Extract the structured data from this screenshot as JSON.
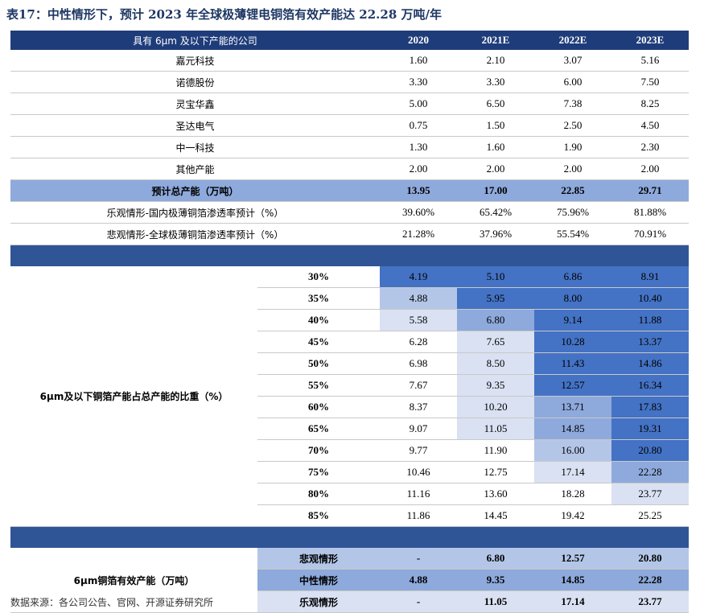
{
  "title": "表17：中性情形下，预计 2023 年全球极薄锂电铜箔有效产能达 22.28 万吨/年",
  "header": {
    "company": "具有 6μm 及以下产能的公司",
    "years": [
      "2020",
      "2021E",
      "2022E",
      "2023E"
    ]
  },
  "companies": [
    {
      "name": "嘉元科技",
      "values": [
        "1.60",
        "2.10",
        "3.07",
        "5.16"
      ]
    },
    {
      "name": "诺德股份",
      "values": [
        "3.30",
        "3.30",
        "6.00",
        "7.50"
      ]
    },
    {
      "name": "灵宝华鑫",
      "values": [
        "5.00",
        "6.50",
        "7.38",
        "8.25"
      ]
    },
    {
      "name": "圣达电气",
      "values": [
        "0.75",
        "1.50",
        "2.50",
        "4.50"
      ]
    },
    {
      "name": "中一科技",
      "values": [
        "1.30",
        "1.60",
        "1.90",
        "2.30"
      ]
    },
    {
      "name": "其他产能",
      "values": [
        "2.00",
        "2.00",
        "2.00",
        "2.00"
      ]
    }
  ],
  "total": {
    "name": "预计总产能（万吨）",
    "values": [
      "13.95",
      "17.00",
      "22.85",
      "29.71"
    ]
  },
  "penetration": [
    {
      "name": "乐观情形-国内极薄铜箔渗透率预计（%）",
      "values": [
        "39.60%",
        "65.42%",
        "75.96%",
        "81.88%"
      ]
    },
    {
      "name": "悲观情形-全球极薄铜箔渗透率预计（%）",
      "values": [
        "21.28%",
        "37.96%",
        "55.54%",
        "70.91%"
      ]
    }
  ],
  "ratio_label": "6μm及以下铜箔产能占总产能的比重（%）",
  "ratio_rows": [
    {
      "pct": "30%",
      "values": [
        "4.19",
        "5.10",
        "6.86",
        "8.91"
      ]
    },
    {
      "pct": "35%",
      "values": [
        "4.88",
        "5.95",
        "8.00",
        "10.40"
      ]
    },
    {
      "pct": "40%",
      "values": [
        "5.58",
        "6.80",
        "9.14",
        "11.88"
      ]
    },
    {
      "pct": "45%",
      "values": [
        "6.28",
        "7.65",
        "10.28",
        "13.37"
      ]
    },
    {
      "pct": "50%",
      "values": [
        "6.98",
        "8.50",
        "11.43",
        "14.86"
      ]
    },
    {
      "pct": "55%",
      "values": [
        "7.67",
        "9.35",
        "12.57",
        "16.34"
      ]
    },
    {
      "pct": "60%",
      "values": [
        "8.37",
        "10.20",
        "13.71",
        "17.83"
      ]
    },
    {
      "pct": "65%",
      "values": [
        "9.07",
        "11.05",
        "14.85",
        "19.31"
      ]
    },
    {
      "pct": "70%",
      "values": [
        "9.77",
        "11.90",
        "16.00",
        "20.80"
      ]
    },
    {
      "pct": "75%",
      "values": [
        "10.46",
        "12.75",
        "17.14",
        "22.28"
      ]
    },
    {
      "pct": "80%",
      "values": [
        "11.16",
        "13.60",
        "18.28",
        "23.77"
      ]
    },
    {
      "pct": "85%",
      "values": [
        "11.86",
        "14.45",
        "19.42",
        "25.25"
      ]
    }
  ],
  "ratio_shading": [
    [
      "c1",
      "c1",
      "c1",
      "c1"
    ],
    [
      "c3",
      "c1",
      "c1",
      "c1"
    ],
    [
      "c4",
      "c2",
      "c1",
      "c1"
    ],
    [
      "c0",
      "c4",
      "c1",
      "c1"
    ],
    [
      "c0",
      "c4",
      "c1",
      "c1"
    ],
    [
      "c0",
      "c4",
      "c1",
      "c1"
    ],
    [
      "c0",
      "c4",
      "c2",
      "c1"
    ],
    [
      "c0",
      "c4",
      "c2",
      "c1"
    ],
    [
      "c0",
      "c0",
      "c3",
      "c1"
    ],
    [
      "c0",
      "c0",
      "c4",
      "c2"
    ],
    [
      "c0",
      "c0",
      "c0",
      "c4"
    ],
    [
      "c0",
      "c0",
      "c0",
      "c0"
    ]
  ],
  "capacity_label": "6μm铜箔有效产能（万吨）",
  "scenarios": [
    {
      "name": "悲观情形",
      "values": [
        "-",
        "6.80",
        "12.57",
        "20.80"
      ],
      "bg": "#b4c6e7"
    },
    {
      "name": "中性情形",
      "values": [
        "4.88",
        "9.35",
        "14.85",
        "22.28"
      ],
      "bg": "#8ea9db"
    },
    {
      "name": "乐观情形",
      "values": [
        "-",
        "11.05",
        "17.14",
        "23.77"
      ],
      "bg": "#d9e1f2"
    }
  ],
  "source": "数据来源：各公司公告、官网、开源证券研究所"
}
